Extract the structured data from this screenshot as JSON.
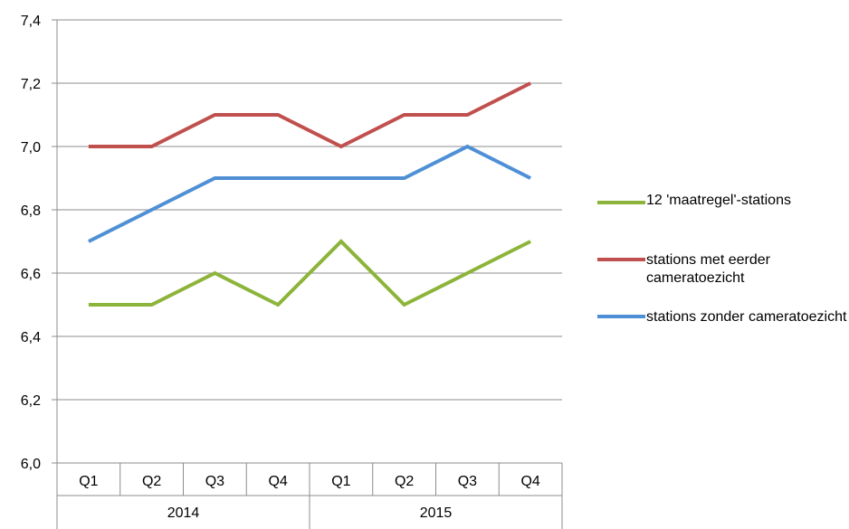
{
  "chart_data": {
    "type": "line",
    "categories": [
      "Q1",
      "Q2",
      "Q3",
      "Q4",
      "Q1",
      "Q2",
      "Q3",
      "Q4"
    ],
    "groups": [
      {
        "label": "2014",
        "quarters": 4
      },
      {
        "label": "2015",
        "quarters": 4
      }
    ],
    "series": [
      {
        "name": "12 'maatregel'-stations",
        "color": "#8db43a",
        "values": [
          6.5,
          6.5,
          6.6,
          6.5,
          6.7,
          6.5,
          6.6,
          6.7
        ]
      },
      {
        "name": "stations met eerder cameratoezicht",
        "color": "#c0504d",
        "values": [
          7.0,
          7.0,
          7.1,
          7.1,
          7.0,
          7.1,
          7.1,
          7.2
        ]
      },
      {
        "name": "stations zonder cameratoezicht",
        "color": "#4f8fd6",
        "values": [
          6.7,
          6.8,
          6.9,
          6.9,
          6.9,
          6.9,
          7.0,
          6.9
        ]
      }
    ],
    "ylim": [
      6.0,
      7.4
    ],
    "yticks": [
      "6,0",
      "6,2",
      "6,4",
      "6,6",
      "6,8",
      "7,0",
      "7,2",
      "7,4"
    ],
    "grid": true,
    "legend": "right",
    "title": "",
    "xlabel": "",
    "ylabel": ""
  }
}
